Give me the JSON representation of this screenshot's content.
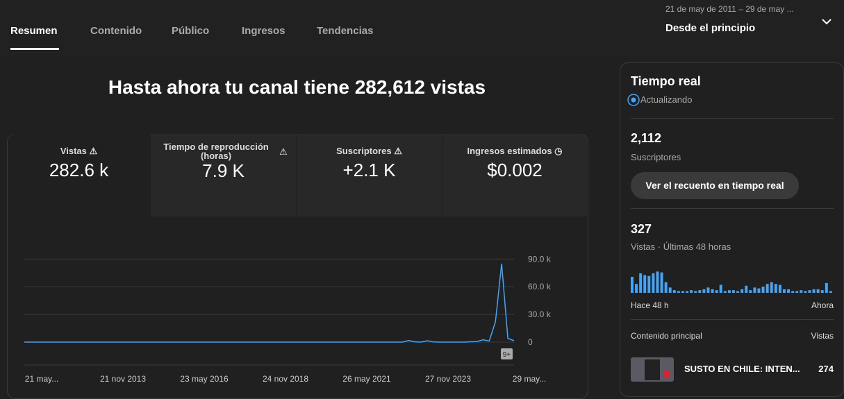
{
  "tabs": [
    "Resumen",
    "Contenido",
    "Público",
    "Ingresos",
    "Tendencias"
  ],
  "date_range": {
    "range": "21 de may de 2011 – 29 de may ...",
    "label": "Desde el principio"
  },
  "headline": "Hasta ahora tu canal tiene 282,612 vistas",
  "metrics": [
    {
      "label": "Vistas",
      "value": "282.6 k"
    },
    {
      "label": "Tiempo de reproducción (horas)",
      "value": "7.9 K"
    },
    {
      "label": "Suscriptores",
      "value": "+2.1 K"
    },
    {
      "label": "Ingresos estimados",
      "value": "$0.002"
    }
  ],
  "chart_data": {
    "type": "line",
    "color": "#3ea6ff",
    "x_tick_labels": [
      "21 may...",
      "21 nov 2013",
      "23 may 2016",
      "24 nov 2018",
      "26 may 2021",
      "27 nov 2023",
      "29 may..."
    ],
    "values": [
      0,
      0,
      0,
      0,
      0,
      0,
      0,
      0,
      0,
      0,
      0,
      0,
      0,
      0,
      0,
      0,
      0,
      0,
      0,
      0,
      0,
      0,
      0,
      0,
      0,
      0,
      0,
      0,
      0,
      0,
      0,
      0,
      0,
      0,
      0,
      0,
      0,
      0,
      0,
      0,
      0,
      0,
      0,
      0,
      0,
      0,
      0,
      0,
      0,
      0,
      0,
      0,
      0,
      0,
      0,
      0,
      0,
      0,
      0,
      0,
      0,
      0,
      1800,
      300,
      0,
      1500,
      200,
      0,
      0,
      0,
      0,
      0,
      400,
      600,
      2500,
      1200,
      22000,
      85000,
      4000,
      1500
    ],
    "ylim": [
      0,
      100000
    ],
    "yticks": [
      {
        "value": 0,
        "label": "0"
      },
      {
        "value": 30000,
        "label": "30.0 k"
      },
      {
        "value": 60000,
        "label": "60.0 k"
      },
      {
        "value": 90000,
        "label": "90.0 k"
      }
    ],
    "grid": true,
    "badge": "9+"
  },
  "realtime": {
    "title": "Tiempo real",
    "status": "Actualizando",
    "subscribers": "2,112",
    "subscribers_label": "Suscriptores",
    "button": "Ver el recuento en tiempo real",
    "views": "327",
    "views_label": "Vistas · Últimas 48 horas",
    "bar_chart": {
      "type": "bar",
      "color": "#3ea6ff",
      "ylim": [
        0,
        25
      ],
      "values": [
        18,
        10,
        22,
        20,
        19,
        22,
        24,
        23,
        12,
        6,
        3,
        2,
        2,
        2,
        3,
        2,
        3,
        4,
        6,
        4,
        3,
        9,
        2,
        3,
        3,
        2,
        4,
        8,
        3,
        6,
        5,
        7,
        10,
        12,
        10,
        9,
        4,
        4,
        2,
        2,
        3,
        2,
        3,
        4,
        4,
        3,
        11,
        2
      ],
      "start_label": "Hace 48 h",
      "end_label": "Ahora"
    },
    "top_content_label": "Contenido principal",
    "top_content_metric": "Vistas",
    "top_content": [
      {
        "title": "SUSTO EN CHILE: INTEN...",
        "views": "274"
      }
    ]
  }
}
